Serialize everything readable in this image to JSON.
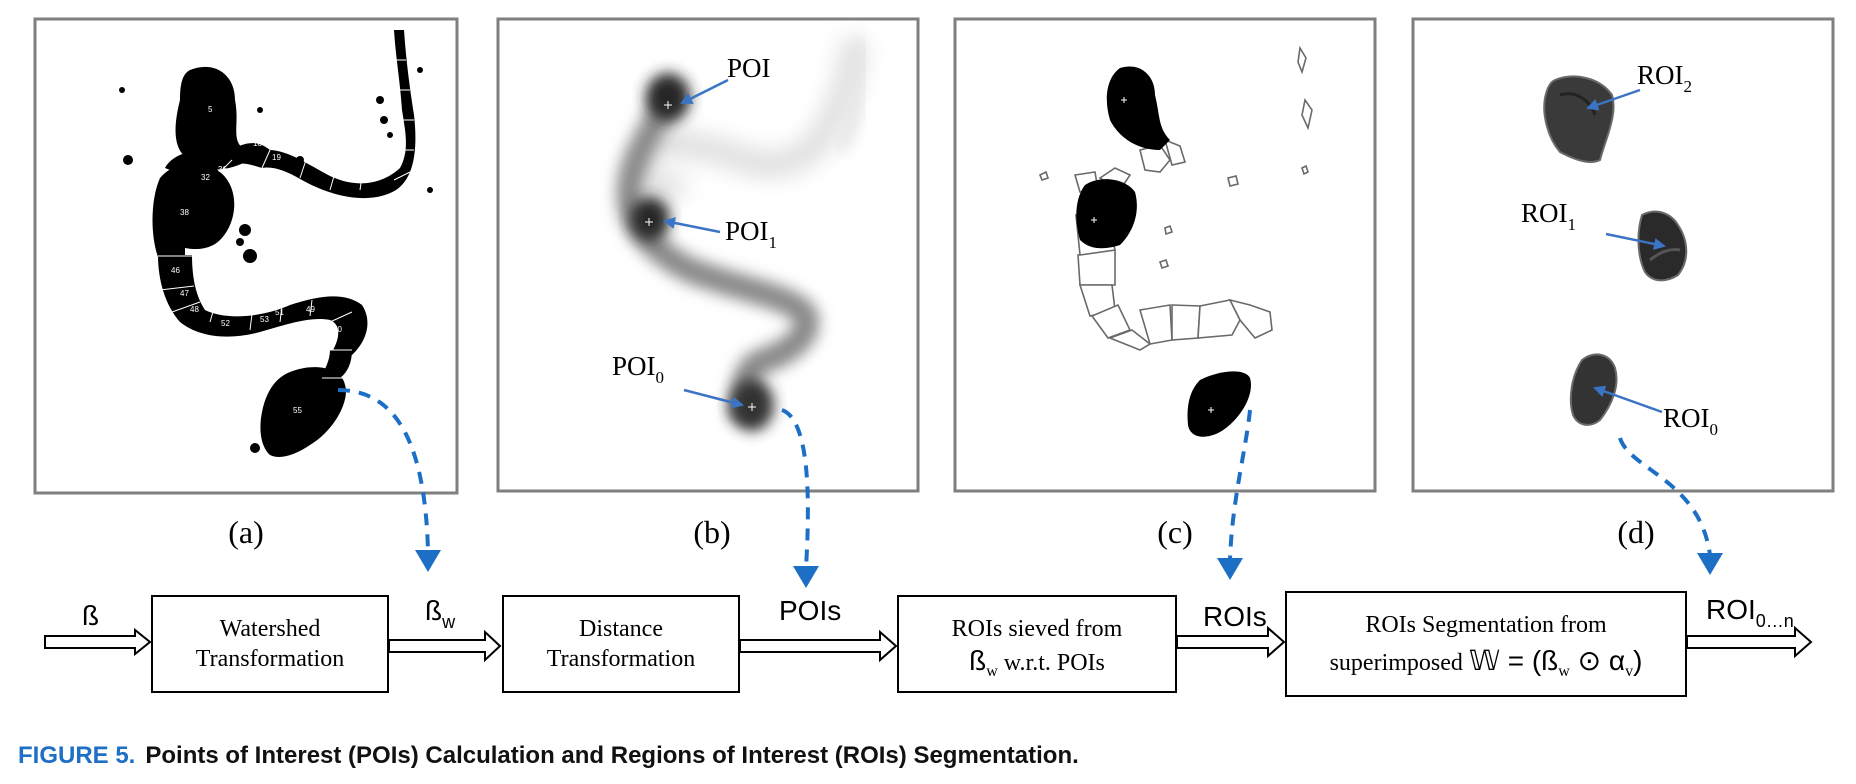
{
  "panels": {
    "a": {
      "label": "(a)",
      "segment_numbers": [
        "5",
        "32",
        "36",
        "18",
        "19",
        "38",
        "46",
        "47",
        "48",
        "52",
        "53",
        "51",
        "49",
        "50",
        "55"
      ]
    },
    "b": {
      "label": "(b)",
      "poi_label": "POI",
      "poi1_main": "POI",
      "poi1_sub": "1",
      "poi0_main": "POI",
      "poi0_sub": "0"
    },
    "c": {
      "label": "(c)"
    },
    "d": {
      "label": "(d)",
      "roi2_main": "ROI",
      "roi2_sub": "2",
      "roi1_main": "ROI",
      "roi1_sub": "1",
      "roi0_main": "ROI",
      "roi0_sub": "0"
    }
  },
  "flow": {
    "input_symbol": "ß",
    "box1_line1": "Watershed",
    "box1_line2": "Transformation",
    "beta_w_main": "ß",
    "beta_w_sub": "w",
    "box2_line1": "Distance",
    "box2_line2": "Transformation",
    "pois_label": "POIs",
    "box3_line1": "ROIs sieved from",
    "box3_line2_beta": "ß",
    "box3_line2_sub": "w",
    "box3_line2_rest": " w.r.t. POIs",
    "rois_label": "ROIs",
    "box4_line1": "ROIs Segmentation from",
    "box4_line2_prefix": "superimposed ",
    "box4_line2_w": "𝕎",
    "box4_line2_eq": " = (",
    "box4_line2_beta": "ß",
    "box4_line2_betasub": "w",
    "box4_line2_odot": " ⊙ ",
    "box4_line2_alpha": "α",
    "box4_line2_alphasub": "v",
    "box4_line2_close": ")",
    "output_main": "ROI",
    "output_sub": "0…n"
  },
  "caption": {
    "number": "FIGURE 5.",
    "text": "Points of Interest (POIs) Calculation and Regions of Interest (ROIs) Segmentation."
  },
  "colors": {
    "caption_blue": "#1e6fc5",
    "arrow_blue": "#3b74c4",
    "frame_gray": "#7f7f7f"
  }
}
